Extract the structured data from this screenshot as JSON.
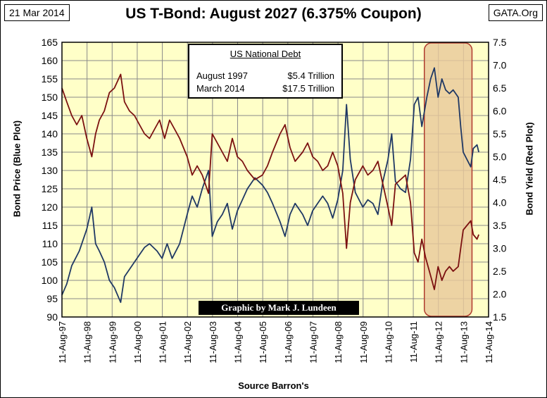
{
  "header": {
    "date": "21 Mar 2014",
    "title": "US T-Bond: August 2027 (6.375% Coupon)",
    "source": "GATA.Org"
  },
  "debt_box": {
    "title": "US National Debt",
    "rows": [
      {
        "label": "August 1997",
        "value": "$5.4 Trillion"
      },
      {
        "label": "March 2014",
        "value": "$17.5 Trillion"
      }
    ]
  },
  "credit": "Graphic by Mark J. Lundeen",
  "colors": {
    "plot_bg": "#FFFFC8",
    "price_line": "#1F3864",
    "yield_line": "#7B1010",
    "highlight_fill": "#E8C89A",
    "highlight_border": "#B03A2E"
  },
  "chart_data": {
    "type": "line",
    "xlabel": "Source Barron's",
    "ylabel_left": "Bond Price  (Blue Plot)",
    "ylabel_right": "Bond Yield  (Red Plot)",
    "x_ticks": [
      "11-Aug-97",
      "11-Aug-98",
      "11-Aug-99",
      "11-Aug-00",
      "11-Aug-01",
      "11-Aug-02",
      "11-Aug-03",
      "11-Aug-04",
      "11-Aug-05",
      "11-Aug-06",
      "11-Aug-07",
      "11-Aug-08",
      "11-Aug-09",
      "11-Aug-10",
      "11-Aug-11",
      "11-Aug-12",
      "11-Aug-13",
      "11-Aug-14"
    ],
    "x_range": [
      1997.61,
      2014.61
    ],
    "y_left_range": [
      90,
      165
    ],
    "y_left_ticks": [
      90,
      95,
      100,
      105,
      110,
      115,
      120,
      125,
      130,
      135,
      140,
      145,
      150,
      155,
      160,
      165
    ],
    "y_right_range": [
      1.5,
      7.5
    ],
    "y_right_ticks": [
      "1.5",
      "2.0",
      "2.5",
      "3.0",
      "3.5",
      "4.0",
      "4.5",
      "5.0",
      "5.5",
      "6.0",
      "6.5",
      "7.0",
      "7.5"
    ],
    "grid": true,
    "highlight_x_range": [
      2012.05,
      2013.95
    ],
    "series": [
      {
        "name": "Bond Price",
        "axis": "left",
        "points": [
          [
            1997.61,
            96
          ],
          [
            1997.8,
            99
          ],
          [
            1998.0,
            104
          ],
          [
            1998.3,
            108
          ],
          [
            1998.6,
            114
          ],
          [
            1998.8,
            120
          ],
          [
            1998.95,
            110
          ],
          [
            1999.1,
            108
          ],
          [
            1999.3,
            105
          ],
          [
            1999.5,
            100
          ],
          [
            1999.7,
            98
          ],
          [
            1999.95,
            94
          ],
          [
            2000.1,
            101
          ],
          [
            2000.3,
            103
          ],
          [
            2000.5,
            105
          ],
          [
            2000.7,
            107
          ],
          [
            2000.9,
            109
          ],
          [
            2001.1,
            110
          ],
          [
            2001.4,
            108
          ],
          [
            2001.6,
            106
          ],
          [
            2001.8,
            110
          ],
          [
            2002.0,
            106
          ],
          [
            2002.3,
            110
          ],
          [
            2002.6,
            118
          ],
          [
            2002.8,
            123
          ],
          [
            2003.0,
            120
          ],
          [
            2003.2,
            125
          ],
          [
            2003.45,
            130
          ],
          [
            2003.6,
            112
          ],
          [
            2003.8,
            116
          ],
          [
            2004.0,
            118
          ],
          [
            2004.2,
            121
          ],
          [
            2004.4,
            114
          ],
          [
            2004.6,
            119
          ],
          [
            2004.8,
            122
          ],
          [
            2005.0,
            125
          ],
          [
            2005.3,
            128
          ],
          [
            2005.6,
            126
          ],
          [
            2005.8,
            124
          ],
          [
            2006.0,
            121
          ],
          [
            2006.3,
            116
          ],
          [
            2006.5,
            112
          ],
          [
            2006.7,
            118
          ],
          [
            2006.9,
            121
          ],
          [
            2007.2,
            118
          ],
          [
            2007.4,
            115
          ],
          [
            2007.6,
            119
          ],
          [
            2007.8,
            121
          ],
          [
            2008.0,
            123
          ],
          [
            2008.2,
            121
          ],
          [
            2008.4,
            117
          ],
          [
            2008.6,
            122
          ],
          [
            2008.8,
            130
          ],
          [
            2008.95,
            148
          ],
          [
            2009.1,
            133
          ],
          [
            2009.3,
            124
          ],
          [
            2009.6,
            120
          ],
          [
            2009.8,
            122
          ],
          [
            2010.0,
            121
          ],
          [
            2010.2,
            118
          ],
          [
            2010.4,
            127
          ],
          [
            2010.6,
            133
          ],
          [
            2010.75,
            140
          ],
          [
            2010.9,
            127
          ],
          [
            2011.1,
            125
          ],
          [
            2011.3,
            124
          ],
          [
            2011.5,
            133
          ],
          [
            2011.65,
            148
          ],
          [
            2011.8,
            150
          ],
          [
            2011.95,
            142
          ],
          [
            2012.15,
            150
          ],
          [
            2012.3,
            155
          ],
          [
            2012.45,
            158
          ],
          [
            2012.6,
            150
          ],
          [
            2012.75,
            155
          ],
          [
            2012.9,
            152
          ],
          [
            2013.05,
            151
          ],
          [
            2013.2,
            152
          ],
          [
            2013.4,
            150
          ],
          [
            2013.5,
            142
          ],
          [
            2013.6,
            135
          ],
          [
            2013.75,
            133
          ],
          [
            2013.9,
            131
          ],
          [
            2014.0,
            136
          ],
          [
            2014.15,
            137
          ],
          [
            2014.22,
            135
          ]
        ]
      },
      {
        "name": "Bond Yield",
        "axis": "right",
        "points": [
          [
            1997.61,
            6.5
          ],
          [
            1997.8,
            6.2
          ],
          [
            1998.0,
            5.9
          ],
          [
            1998.2,
            5.7
          ],
          [
            1998.4,
            5.9
          ],
          [
            1998.6,
            5.4
          ],
          [
            1998.8,
            5.0
          ],
          [
            1998.95,
            5.5
          ],
          [
            1999.1,
            5.8
          ],
          [
            1999.3,
            6.0
          ],
          [
            1999.5,
            6.4
          ],
          [
            1999.7,
            6.5
          ],
          [
            1999.95,
            6.8
          ],
          [
            2000.1,
            6.2
          ],
          [
            2000.3,
            6.0
          ],
          [
            2000.5,
            5.9
          ],
          [
            2000.7,
            5.7
          ],
          [
            2000.9,
            5.5
          ],
          [
            2001.1,
            5.4
          ],
          [
            2001.3,
            5.6
          ],
          [
            2001.5,
            5.8
          ],
          [
            2001.7,
            5.4
          ],
          [
            2001.9,
            5.8
          ],
          [
            2002.1,
            5.6
          ],
          [
            2002.3,
            5.4
          ],
          [
            2002.6,
            5.0
          ],
          [
            2002.8,
            4.6
          ],
          [
            2003.0,
            4.8
          ],
          [
            2003.2,
            4.6
          ],
          [
            2003.45,
            4.2
          ],
          [
            2003.6,
            5.5
          ],
          [
            2003.8,
            5.3
          ],
          [
            2004.0,
            5.1
          ],
          [
            2004.2,
            4.9
          ],
          [
            2004.4,
            5.4
          ],
          [
            2004.6,
            5.0
          ],
          [
            2004.8,
            4.9
          ],
          [
            2005.0,
            4.7
          ],
          [
            2005.3,
            4.5
          ],
          [
            2005.6,
            4.6
          ],
          [
            2005.8,
            4.8
          ],
          [
            2006.0,
            5.1
          ],
          [
            2006.3,
            5.5
          ],
          [
            2006.5,
            5.7
          ],
          [
            2006.7,
            5.2
          ],
          [
            2006.9,
            4.9
          ],
          [
            2007.2,
            5.1
          ],
          [
            2007.4,
            5.3
          ],
          [
            2007.6,
            5.0
          ],
          [
            2007.8,
            4.9
          ],
          [
            2008.0,
            4.7
          ],
          [
            2008.2,
            4.8
          ],
          [
            2008.4,
            5.1
          ],
          [
            2008.6,
            4.8
          ],
          [
            2008.8,
            4.2
          ],
          [
            2008.95,
            3.0
          ],
          [
            2009.1,
            4.0
          ],
          [
            2009.3,
            4.5
          ],
          [
            2009.6,
            4.8
          ],
          [
            2009.8,
            4.6
          ],
          [
            2010.0,
            4.7
          ],
          [
            2010.2,
            4.9
          ],
          [
            2010.4,
            4.4
          ],
          [
            2010.6,
            3.9
          ],
          [
            2010.75,
            3.5
          ],
          [
            2010.9,
            4.4
          ],
          [
            2011.1,
            4.5
          ],
          [
            2011.3,
            4.6
          ],
          [
            2011.5,
            4.0
          ],
          [
            2011.65,
            2.9
          ],
          [
            2011.8,
            2.7
          ],
          [
            2011.95,
            3.2
          ],
          [
            2012.1,
            2.8
          ],
          [
            2012.3,
            2.4
          ],
          [
            2012.45,
            2.1
          ],
          [
            2012.6,
            2.6
          ],
          [
            2012.75,
            2.3
          ],
          [
            2012.9,
            2.5
          ],
          [
            2013.05,
            2.6
          ],
          [
            2013.2,
            2.5
          ],
          [
            2013.4,
            2.6
          ],
          [
            2013.5,
            3.0
          ],
          [
            2013.6,
            3.4
          ],
          [
            2013.75,
            3.5
          ],
          [
            2013.9,
            3.6
          ],
          [
            2014.0,
            3.3
          ],
          [
            2014.15,
            3.2
          ],
          [
            2014.22,
            3.3
          ]
        ]
      }
    ]
  }
}
